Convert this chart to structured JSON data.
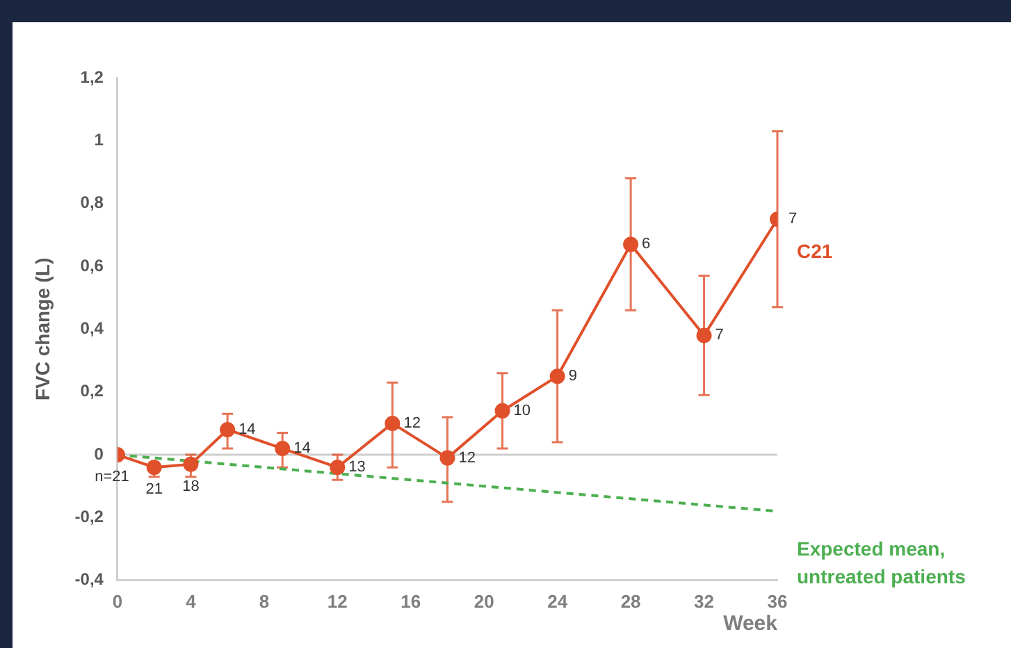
{
  "chart_data": {
    "type": "line",
    "ylabel": "FVC change (L)",
    "xlabel": "Week",
    "x": [
      0,
      2,
      4,
      6,
      9,
      12,
      15,
      18,
      21,
      24,
      28,
      32,
      36
    ],
    "series": [
      {
        "name": "C21",
        "color": "#e0502a",
        "marker": "circle",
        "line_style": "solid",
        "values": [
          0,
          -0.04,
          -0.03,
          0.08,
          0.02,
          -0.04,
          0.1,
          -0.01,
          0.14,
          0.25,
          0.67,
          0.38,
          0.75
        ],
        "errors": [
          null,
          [
            -0.07,
            -0.03
          ],
          [
            -0.07,
            0.0
          ],
          [
            0.02,
            0.13
          ],
          [
            -0.04,
            0.07
          ],
          [
            -0.08,
            0.0
          ],
          [
            -0.04,
            0.23
          ],
          [
            -0.15,
            0.12
          ],
          [
            0.02,
            0.26
          ],
          [
            0.04,
            0.46
          ],
          [
            0.46,
            0.88
          ],
          [
            0.19,
            0.57
          ],
          [
            0.47,
            1.03
          ]
        ]
      },
      {
        "name": "Expected mean, untreated patients",
        "color": "#4caf50",
        "marker": "none",
        "line_style": "dashed",
        "x": [
          0,
          36
        ],
        "values": [
          0,
          -0.18
        ]
      }
    ],
    "xlim": [
      0,
      36
    ],
    "xticks": [
      0,
      4,
      8,
      12,
      16,
      20,
      24,
      28,
      32,
      36
    ],
    "ylim": [
      -0.4,
      1.2
    ],
    "yticks": [
      {
        "value": -0.4,
        "label": "-0,4"
      },
      {
        "value": -0.2,
        "label": "-0,2"
      },
      0,
      {
        "value": 0.2,
        "label": "0,2"
      },
      {
        "value": 0.4,
        "label": "0,4"
      },
      {
        "value": 0.6,
        "label": "0,6"
      },
      {
        "value": 0.8,
        "label": "0,8"
      },
      1,
      {
        "value": 1.2,
        "label": "1,2"
      }
    ],
    "ref_lines": [
      {
        "axis": "y",
        "value": 0,
        "color": "#d0d0d0"
      }
    ],
    "annotations": [
      {
        "text": "n=21",
        "x": 0,
        "y": 0
      },
      {
        "text": "21",
        "x": 2,
        "y": -0.04
      },
      {
        "text": "18",
        "x": 4,
        "y": -0.03
      },
      {
        "text": "14",
        "x": 6,
        "y": 0.08
      },
      {
        "text": "14",
        "x": 9,
        "y": 0.02
      },
      {
        "text": "13",
        "x": 12,
        "y": -0.04
      },
      {
        "text": "12",
        "x": 15,
        "y": 0.1
      },
      {
        "text": "12",
        "x": 18,
        "y": -0.01
      },
      {
        "text": "10",
        "x": 21,
        "y": 0.14
      },
      {
        "text": "9",
        "x": 24,
        "y": 0.25
      },
      {
        "text": "6",
        "x": 28,
        "y": 0.67
      },
      {
        "text": "7",
        "x": 32,
        "y": 0.38
      },
      {
        "text": "7",
        "x": 36,
        "y": 0.75
      }
    ],
    "grid": false,
    "legend": false
  }
}
